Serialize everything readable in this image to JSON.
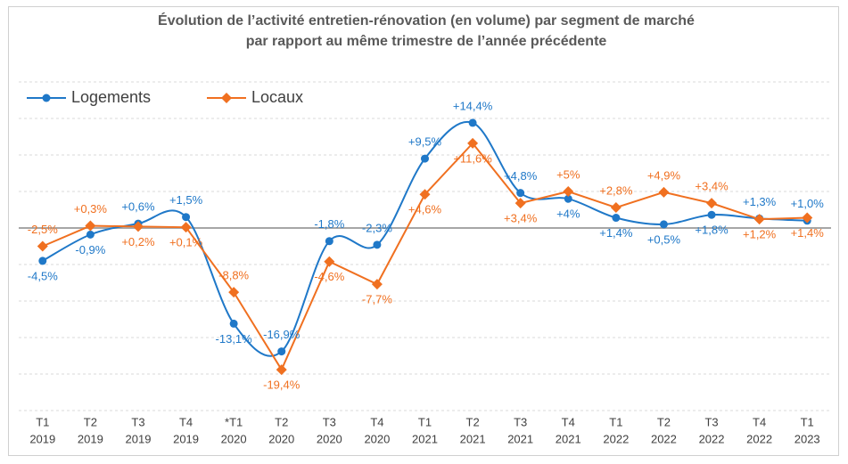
{
  "chart_data": {
    "type": "line",
    "title": [
      "Évolution de l’activité entretien-rénovation (en volume) par segment de marché",
      "par rapport au même trimestre de l’année précédente"
    ],
    "categories": [
      [
        "T1",
        "2019"
      ],
      [
        "T2",
        "2019"
      ],
      [
        "T3",
        "2019"
      ],
      [
        "T4",
        "2019"
      ],
      [
        "*T1",
        "2020"
      ],
      [
        "T2",
        "2020"
      ],
      [
        "T3",
        "2020"
      ],
      [
        "T4",
        "2020"
      ],
      [
        "T1",
        "2021"
      ],
      [
        "T2",
        "2021"
      ],
      [
        "T3",
        "2021"
      ],
      [
        "T4",
        "2021"
      ],
      [
        "T1",
        "2022"
      ],
      [
        "T2",
        "2022"
      ],
      [
        "T3",
        "2022"
      ],
      [
        "T4",
        "2022"
      ],
      [
        "T1",
        "2023"
      ]
    ],
    "series": [
      {
        "name": "Logements",
        "color": "#1f78c8",
        "smooth": true,
        "marker": "circle",
        "values": [
          -4.5,
          -0.9,
          0.6,
          1.5,
          -13.1,
          -16.9,
          -1.8,
          -2.3,
          9.5,
          14.4,
          4.8,
          4,
          1.4,
          0.5,
          1.8,
          1.3,
          1.0
        ],
        "value_labels": [
          "-4,5%",
          "-0,9%",
          "+0,6%",
          "+1,5%",
          "-13,1%",
          "-16,9%",
          "-1,8%",
          "-2,3%",
          "+9,5%",
          "+14,4%",
          "+4,8%",
          "+4%",
          "+1,4%",
          "+0,5%",
          "+1,8%",
          "+1,3%",
          "+1,0%"
        ]
      },
      {
        "name": "Locaux",
        "color": "#f07020",
        "smooth": false,
        "marker": "diamond",
        "values": [
          -2.5,
          0.3,
          0.2,
          0.1,
          -8.8,
          -19.4,
          -4.6,
          -7.7,
          4.6,
          11.6,
          3.4,
          5,
          2.8,
          4.9,
          3.4,
          1.2,
          1.4
        ],
        "value_labels": [
          "-2,5%",
          "+0,3%",
          "+0,2%",
          "+0,1%",
          "-8,8%",
          "-19,4%",
          "-4,6%",
          "-7,7%",
          "+4,6%",
          "+11,6%",
          "+3,4%",
          "+5%",
          "+2,8%",
          "+4,9%",
          "+3,4%",
          "+1,2%",
          "+1,4%"
        ]
      }
    ],
    "ylim": [
      -25,
      20
    ],
    "yticks": [
      -25,
      -20,
      -15,
      -10,
      -5,
      0,
      5,
      10,
      15,
      20
    ],
    "grid": true,
    "legend": "top-left"
  }
}
